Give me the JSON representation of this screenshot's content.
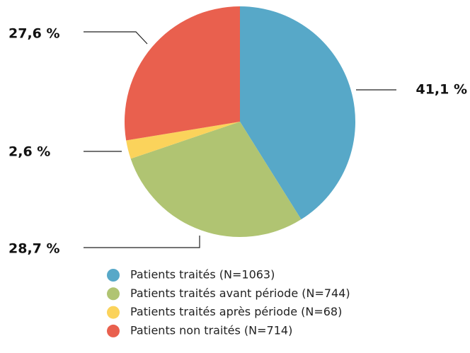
{
  "chart_data": {
    "type": "pie",
    "categories": [
      "Patients traités (N=1063)",
      "Patients traités avant période (N=744)",
      "Patients traités après période (N=68)",
      "Patients non traités (N=714)"
    ],
    "values": [
      41.1,
      28.7,
      2.6,
      27.6
    ],
    "value_labels": [
      "41,1 %",
      "28,7 %",
      "2,6 %",
      "27,6 %"
    ],
    "colors": [
      "#57a8c8",
      "#b0c472",
      "#fbd35b",
      "#e9604e"
    ]
  }
}
